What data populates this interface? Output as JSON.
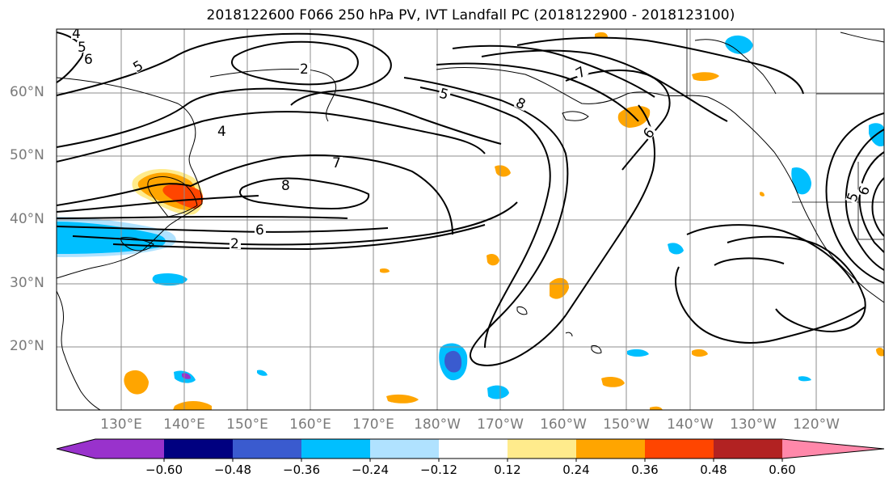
{
  "title": "2018122600 F066 250 hPa PV, IVT Landfall PC (2018122900 - 2018123100)",
  "map": {
    "lat_labels": [
      "60°N",
      "50°N",
      "40°N",
      "30°N",
      "20°N"
    ],
    "lon_labels": [
      "130°E",
      "140°E",
      "150°E",
      "160°E",
      "170°E",
      "180°W",
      "170°W",
      "160°W",
      "150°W",
      "140°W",
      "130°W",
      "120°W"
    ],
    "contour_levels_shown": [
      "2",
      "4",
      "5",
      "6",
      "7",
      "8"
    ]
  },
  "colorbar": {
    "tick_labels": [
      "−0.60",
      "−0.48",
      "−0.36",
      "−0.24",
      "−0.12",
      "0.12",
      "0.24",
      "0.36",
      "0.48",
      "0.60"
    ],
    "colors": [
      "#9932CC",
      "#000080",
      "#3A5BCF",
      "#00BFFF",
      "#B0E2FF",
      "#FFFFFF",
      "#FFEB8C",
      "#FFA500",
      "#FF4500",
      "#B22222",
      "#FF88AA"
    ]
  },
  "styles": {
    "axis_label_color": "#7a7a7a",
    "grid_color": "#8c8c8c",
    "contour_color": "#000000"
  }
}
